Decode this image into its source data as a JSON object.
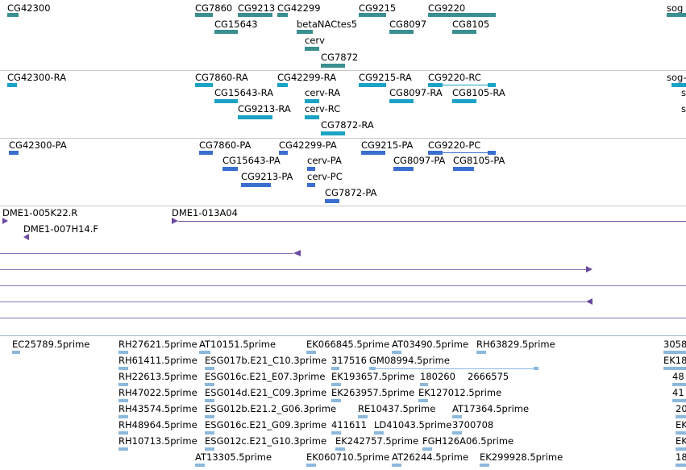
{
  "colors": {
    "gene": "#3a8f8f",
    "transcript": "#1aa3c4",
    "protein": "#3a6fcf",
    "clone": "#6a4aa0",
    "est": "#8bb8dc",
    "divider": "#c8c8c8"
  },
  "genes": {
    "labels": [
      "CG42300",
      "CG7860",
      "CG9213",
      "CG42299",
      "CG9215",
      "CG9220",
      "sog",
      "CG15643",
      "betaNACtes5",
      "CG8097",
      "CG8105",
      "cerv",
      "CG7872"
    ]
  },
  "transcripts": {
    "labels": [
      "CG42300-RA",
      "CG7860-RA",
      "CG42299-RA",
      "CG9215-RA",
      "CG9220-RC",
      "sog-",
      "CG15643-RA",
      "cerv-RA",
      "CG8097-RA",
      "CG8105-RA",
      "CG9213-RA",
      "cerv-RC",
      "CG7872-RA",
      "s",
      "s"
    ]
  },
  "proteins": {
    "labels": [
      "CG42300-PA",
      "CG7860-PA",
      "CG42299-PA",
      "CG9215-PA",
      "CG9220-PC",
      "CG15643-PA",
      "cerv-PA",
      "CG8097-PA",
      "CG8105-PA",
      "CG9213-PA",
      "cerv-PC",
      "CG7872-PA"
    ]
  },
  "clones": {
    "labels": [
      "DME1-005K22.R",
      "DME1-013A04",
      "DME1-007H14.F"
    ]
  },
  "ests": {
    "labels": [
      "EC25789.5prime",
      "RH27621.5prime",
      "AT10151.5prime",
      "EK066845.5prime",
      "AT03490.5prime",
      "RH63829.5prime",
      "3058",
      "RH61411.5prime",
      "ESG017b.E21_C10.3prime",
      "317516",
      "GM08994.5prime",
      "EK18",
      "RH22613.5prime",
      "ESG016c.E21_E07.3prime",
      "EK193657.5prime",
      "180260",
      "2666575",
      "48",
      "RH47022.5prime",
      "ESG014d.E21_C09.3prime",
      "EK263957.5prime",
      "EK127012.5prime",
      "41",
      "RH43574.5prime",
      "ESG012b.E21.2_G06.3prime",
      "RE10437.5prime",
      "AT17364.5prime",
      "20",
      "RH48964.5prime",
      "ESG016c.E21_G09.3prime",
      "411611",
      "LD41043.5prime",
      "3700708",
      "EK",
      "RH10713.5prime",
      "ESG012c.E21_G10.3prime",
      "EK242757.5prime",
      "FGH126A06.5prime",
      "EK",
      "AT13305.5prime",
      "EK060710.5prime",
      "AT26244.5prime",
      "EK299928.5prime",
      "18"
    ]
  }
}
